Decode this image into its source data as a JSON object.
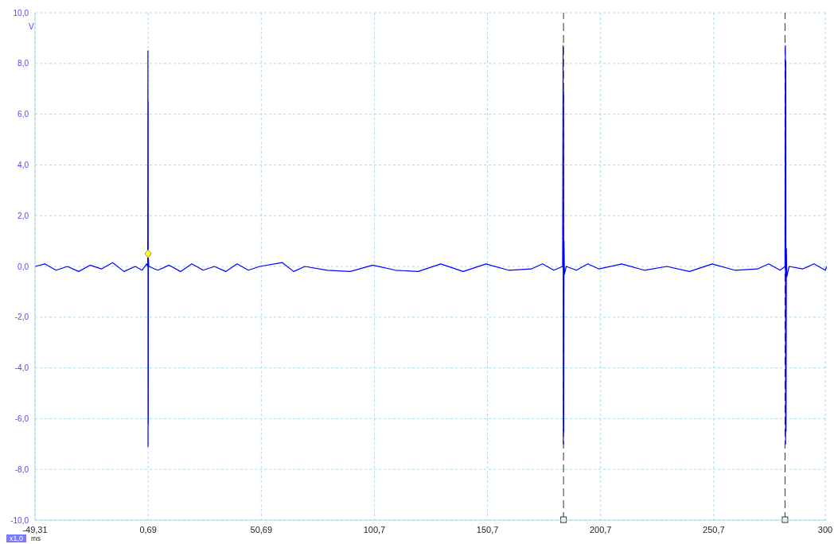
{
  "chart_data": {
    "type": "line",
    "xlabel": "ms",
    "ylabel": "V",
    "annotations": [
      "x1,0"
    ],
    "xlim": [
      -49.31,
      300.69
    ],
    "ylim": [
      -10,
      10
    ],
    "xticks": [
      {
        "value": -49.31,
        "label": "-49,31"
      },
      {
        "value": 0.69,
        "label": "0,69"
      },
      {
        "value": 50.69,
        "label": "50,69"
      },
      {
        "value": 100.69,
        "label": "100,7"
      },
      {
        "value": 150.69,
        "label": "150,7"
      },
      {
        "value": 200.69,
        "label": "200,7"
      },
      {
        "value": 250.69,
        "label": "250,7"
      },
      300
    ],
    "yticks": [
      {
        "value": -10,
        "label": "-10,0"
      },
      {
        "value": -8,
        "label": "-8,0"
      },
      {
        "value": -6,
        "label": "-6,0"
      },
      {
        "value": -4,
        "label": "-4,0"
      },
      {
        "value": -2,
        "label": "-2,0"
      },
      {
        "value": 0,
        "label": "0,0"
      },
      {
        "value": 2,
        "label": "2,0"
      },
      {
        "value": 4,
        "label": "4,0"
      },
      {
        "value": 6,
        "label": "6,0"
      },
      {
        "value": 8,
        "label": "8,0"
      },
      {
        "value": 10,
        "label": "10,0"
      }
    ],
    "grid": true,
    "line_style": "solid",
    "marker": "none",
    "ref_lines": [
      {
        "axis": "x",
        "value": 184.3,
        "color": "#333333",
        "line_style": "dashed"
      },
      {
        "axis": "x",
        "value": 282.2,
        "color": "#333333",
        "line_style": "dashed"
      }
    ],
    "series": [
      {
        "color": "#0000ff",
        "x": [
          -49.31,
          -45,
          -40,
          -35,
          -30,
          -25,
          -20,
          -15,
          -10,
          -5,
          -2,
          0,
          0.5,
          0.6,
          0.65,
          0.7,
          0.75,
          0.8,
          1,
          5,
          10,
          15,
          20,
          25,
          30,
          35,
          40,
          45,
          50,
          60,
          65,
          70,
          80,
          90,
          100,
          110,
          120,
          130,
          140,
          150,
          160,
          170,
          175,
          180,
          183.9,
          184.1,
          184.2,
          184.3,
          184.4,
          184.5,
          184.7,
          185.5,
          190,
          195,
          200,
          210,
          220,
          230,
          240,
          250,
          260,
          270,
          275,
          280,
          282.2,
          282.35,
          282.45,
          282.55,
          282.65,
          282.8,
          283,
          284,
          290,
          295,
          300,
          300.69
        ],
        "values": [
          0,
          0.1,
          -0.15,
          0,
          -0.2,
          0.05,
          -0.1,
          0.15,
          -0.2,
          0,
          -0.15,
          0.1,
          0,
          8.5,
          -7.1,
          6.5,
          -6.2,
          0.3,
          0,
          -0.15,
          0.05,
          -0.2,
          0.1,
          -0.15,
          0,
          -0.2,
          0.1,
          -0.15,
          0,
          0.15,
          -0.2,
          0,
          -0.15,
          -0.2,
          0.05,
          -0.15,
          -0.2,
          0.1,
          -0.2,
          0.1,
          -0.15,
          -0.1,
          0.1,
          -0.15,
          0,
          8.7,
          -7.0,
          6.9,
          -6.5,
          1.0,
          -0.3,
          0,
          -0.15,
          0.1,
          -0.1,
          0.1,
          -0.15,
          0,
          -0.2,
          0.1,
          -0.15,
          -0.1,
          0.1,
          -0.15,
          0,
          8.7,
          -7.0,
          8.1,
          -6.5,
          0.7,
          -0.4,
          0,
          -0.1,
          0.1,
          -0.15,
          0
        ]
      },
      {
        "type": "scatter",
        "color": "#ffff33",
        "marker": "diamond",
        "x": [
          0.69
        ],
        "values": [
          0.5
        ]
      }
    ]
  }
}
